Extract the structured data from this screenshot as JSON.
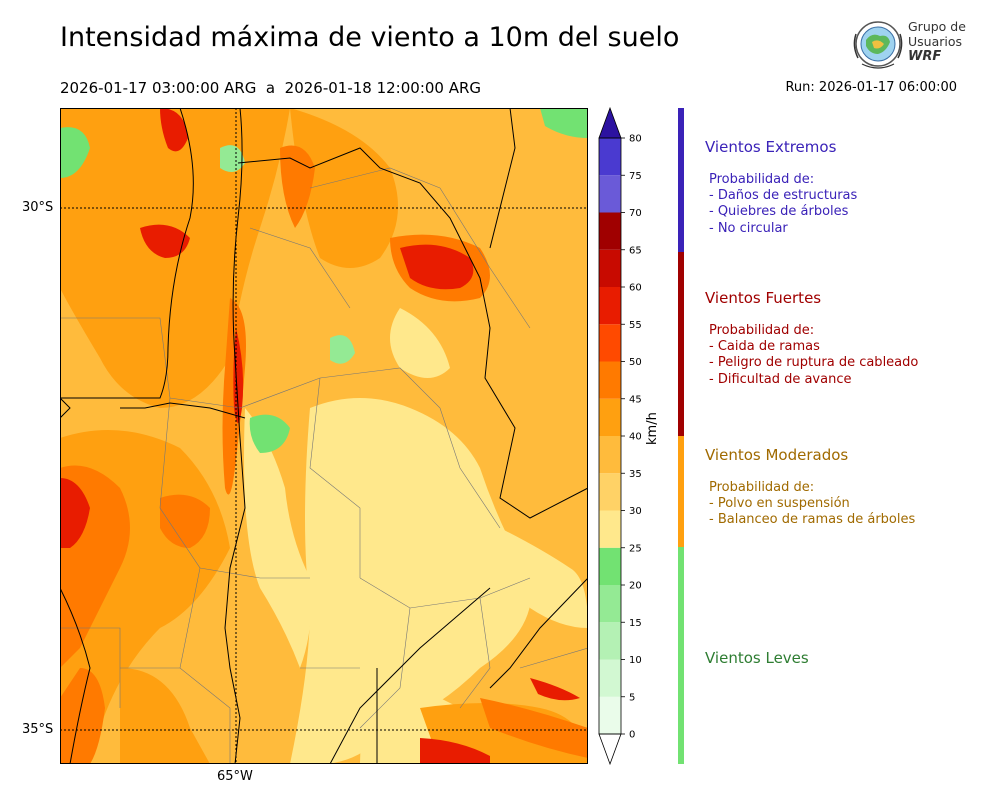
{
  "header": {
    "title": "Intensidad máxima de viento a 10m del suelo",
    "period": "2026-01-17 03:00:00 ARG  a  2026-01-18 12:00:00 ARG",
    "run": "Run: 2026-01-17 06:00:00"
  },
  "logo": {
    "line1": "Grupo de",
    "line2": "Usuarios",
    "line3": "WRF"
  },
  "map": {
    "lat_labels": [
      "30°S",
      "35°S"
    ],
    "lon_labels": [
      "65°W"
    ],
    "gridlines": "dotted"
  },
  "colorbar": {
    "unit": "km/h",
    "ticks": [
      "0",
      "5",
      "10",
      "15",
      "20",
      "25",
      "30",
      "35",
      "40",
      "45",
      "50",
      "55",
      "60",
      "65",
      "70",
      "75",
      "80"
    ],
    "colors": [
      "#eafcea",
      "#d2f8d2",
      "#b4f1b4",
      "#94ea94",
      "#72e272",
      "#ffe88c",
      "#ffd266",
      "#ffbb3c",
      "#ffa010",
      "#ff7a00",
      "#ff4a00",
      "#e81c00",
      "#c80a00",
      "#a00000",
      "#6a5ad8",
      "#4a3ad0",
      "#3a22b8",
      "#2c12a0"
    ]
  },
  "categories": [
    {
      "title": "Vientos Extremos",
      "color": "#3a22b8",
      "desc": "Probabilidad de:\n- Daños de estructuras\n- Quiebres de árboles\n- No circular"
    },
    {
      "title": "Vientos Fuertes",
      "color": "#a00000",
      "desc": "Probabilidad de:\n- Caida de ramas\n- Peligro de ruptura de cableado\n- Dificultad de avance"
    },
    {
      "title": "Vientos Moderados",
      "color": "#a06a00",
      "bar_color": "#ffa010",
      "desc": "Probabilidad de:\n- Polvo en suspensión\n- Balanceo de ramas de árboles"
    },
    {
      "title": "Vientos Leves",
      "color": "#2e7d32",
      "bar_color": "#72e272",
      "desc": ""
    }
  ]
}
